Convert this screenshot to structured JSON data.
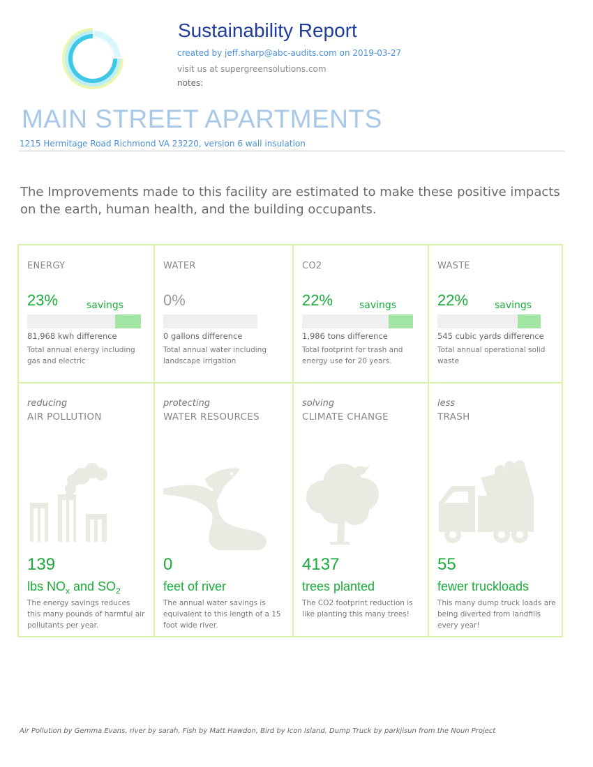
{
  "header": {
    "title": "Sustainability Report",
    "created": "created by jeff.sharp@abc-audits.com on 2019-03-27",
    "visit": "visit us at supergreensolutions.com",
    "notes": "notes:"
  },
  "building": {
    "name": "MAIN STREET APARTMENTS",
    "address": "1215 Hermitage Road  Richmond VA 23220, version 6 wall insulation"
  },
  "intro": "The Improvements made to this facility are estimated to make these positive impacts on the earth, human health, and the building occupants.",
  "metrics": [
    {
      "label": "ENERGY",
      "percent": "23%",
      "savings": "savings",
      "difference": "81,968  kwh difference",
      "description": "Total annual energy including gas and electric",
      "fill_fraction": 0.23
    },
    {
      "label": "WATER",
      "percent": "0%",
      "savings": "",
      "difference": "0  gallons difference",
      "description": "Total annual water including landscape irrigation",
      "fill_fraction": 0
    },
    {
      "label": "CO2",
      "percent": "22%",
      "savings": "savings",
      "difference": "1,986  tons difference",
      "description": "Total footprint for trash and energy use for 20 years.",
      "fill_fraction": 0.22
    },
    {
      "label": "WASTE",
      "percent": "22%",
      "savings": "savings",
      "difference": "545 cubic yards difference",
      "description": "Total annual operational solid waste",
      "fill_fraction": 0.22
    }
  ],
  "impacts": [
    {
      "verb": "reducing",
      "category": "AIR POLLUTION",
      "icon": "factory-icon",
      "value": "139",
      "unit_main": "lbs NO",
      "unit_sub1": "x",
      "unit_mid": " and SO",
      "unit_sub2": "2",
      "description": "The energy savings reduces this many pounds of harmful air pollutants per year."
    },
    {
      "verb": "protecting",
      "category": "WATER RESOURCES",
      "icon": "river-fish-icon",
      "value": "0",
      "unit": "feet of river",
      "description": "The annual water savings is equivalent to this length of a 15 foot wide river."
    },
    {
      "verb": "solving",
      "category": "CLIMATE CHANGE",
      "icon": "tree-bird-icon",
      "value": "4137",
      "unit": "trees planted",
      "description": "The CO2 footprint reduction is like planting this many trees!"
    },
    {
      "verb": "less",
      "category": "TRASH",
      "icon": "dump-truck-icon",
      "value": "55",
      "unit": "fewer truckloads",
      "description": "This many dump truck loads are being diverted from landfills every year!"
    }
  ],
  "footer": "Air Pollution by Gemma Evans, river by sarah, Fish by Matt Hawdon, Bird by Icon Island, Dump Truck by parkjisun from the Noun Project",
  "colors": {
    "accent_green": "#1aab3a",
    "bar_fill": "#a3e6a3",
    "grid_border": "#d8f3a8",
    "title_blue": "#1f3c9a",
    "link_blue": "#4a90d9",
    "building_blue": "#a8c8e8"
  }
}
